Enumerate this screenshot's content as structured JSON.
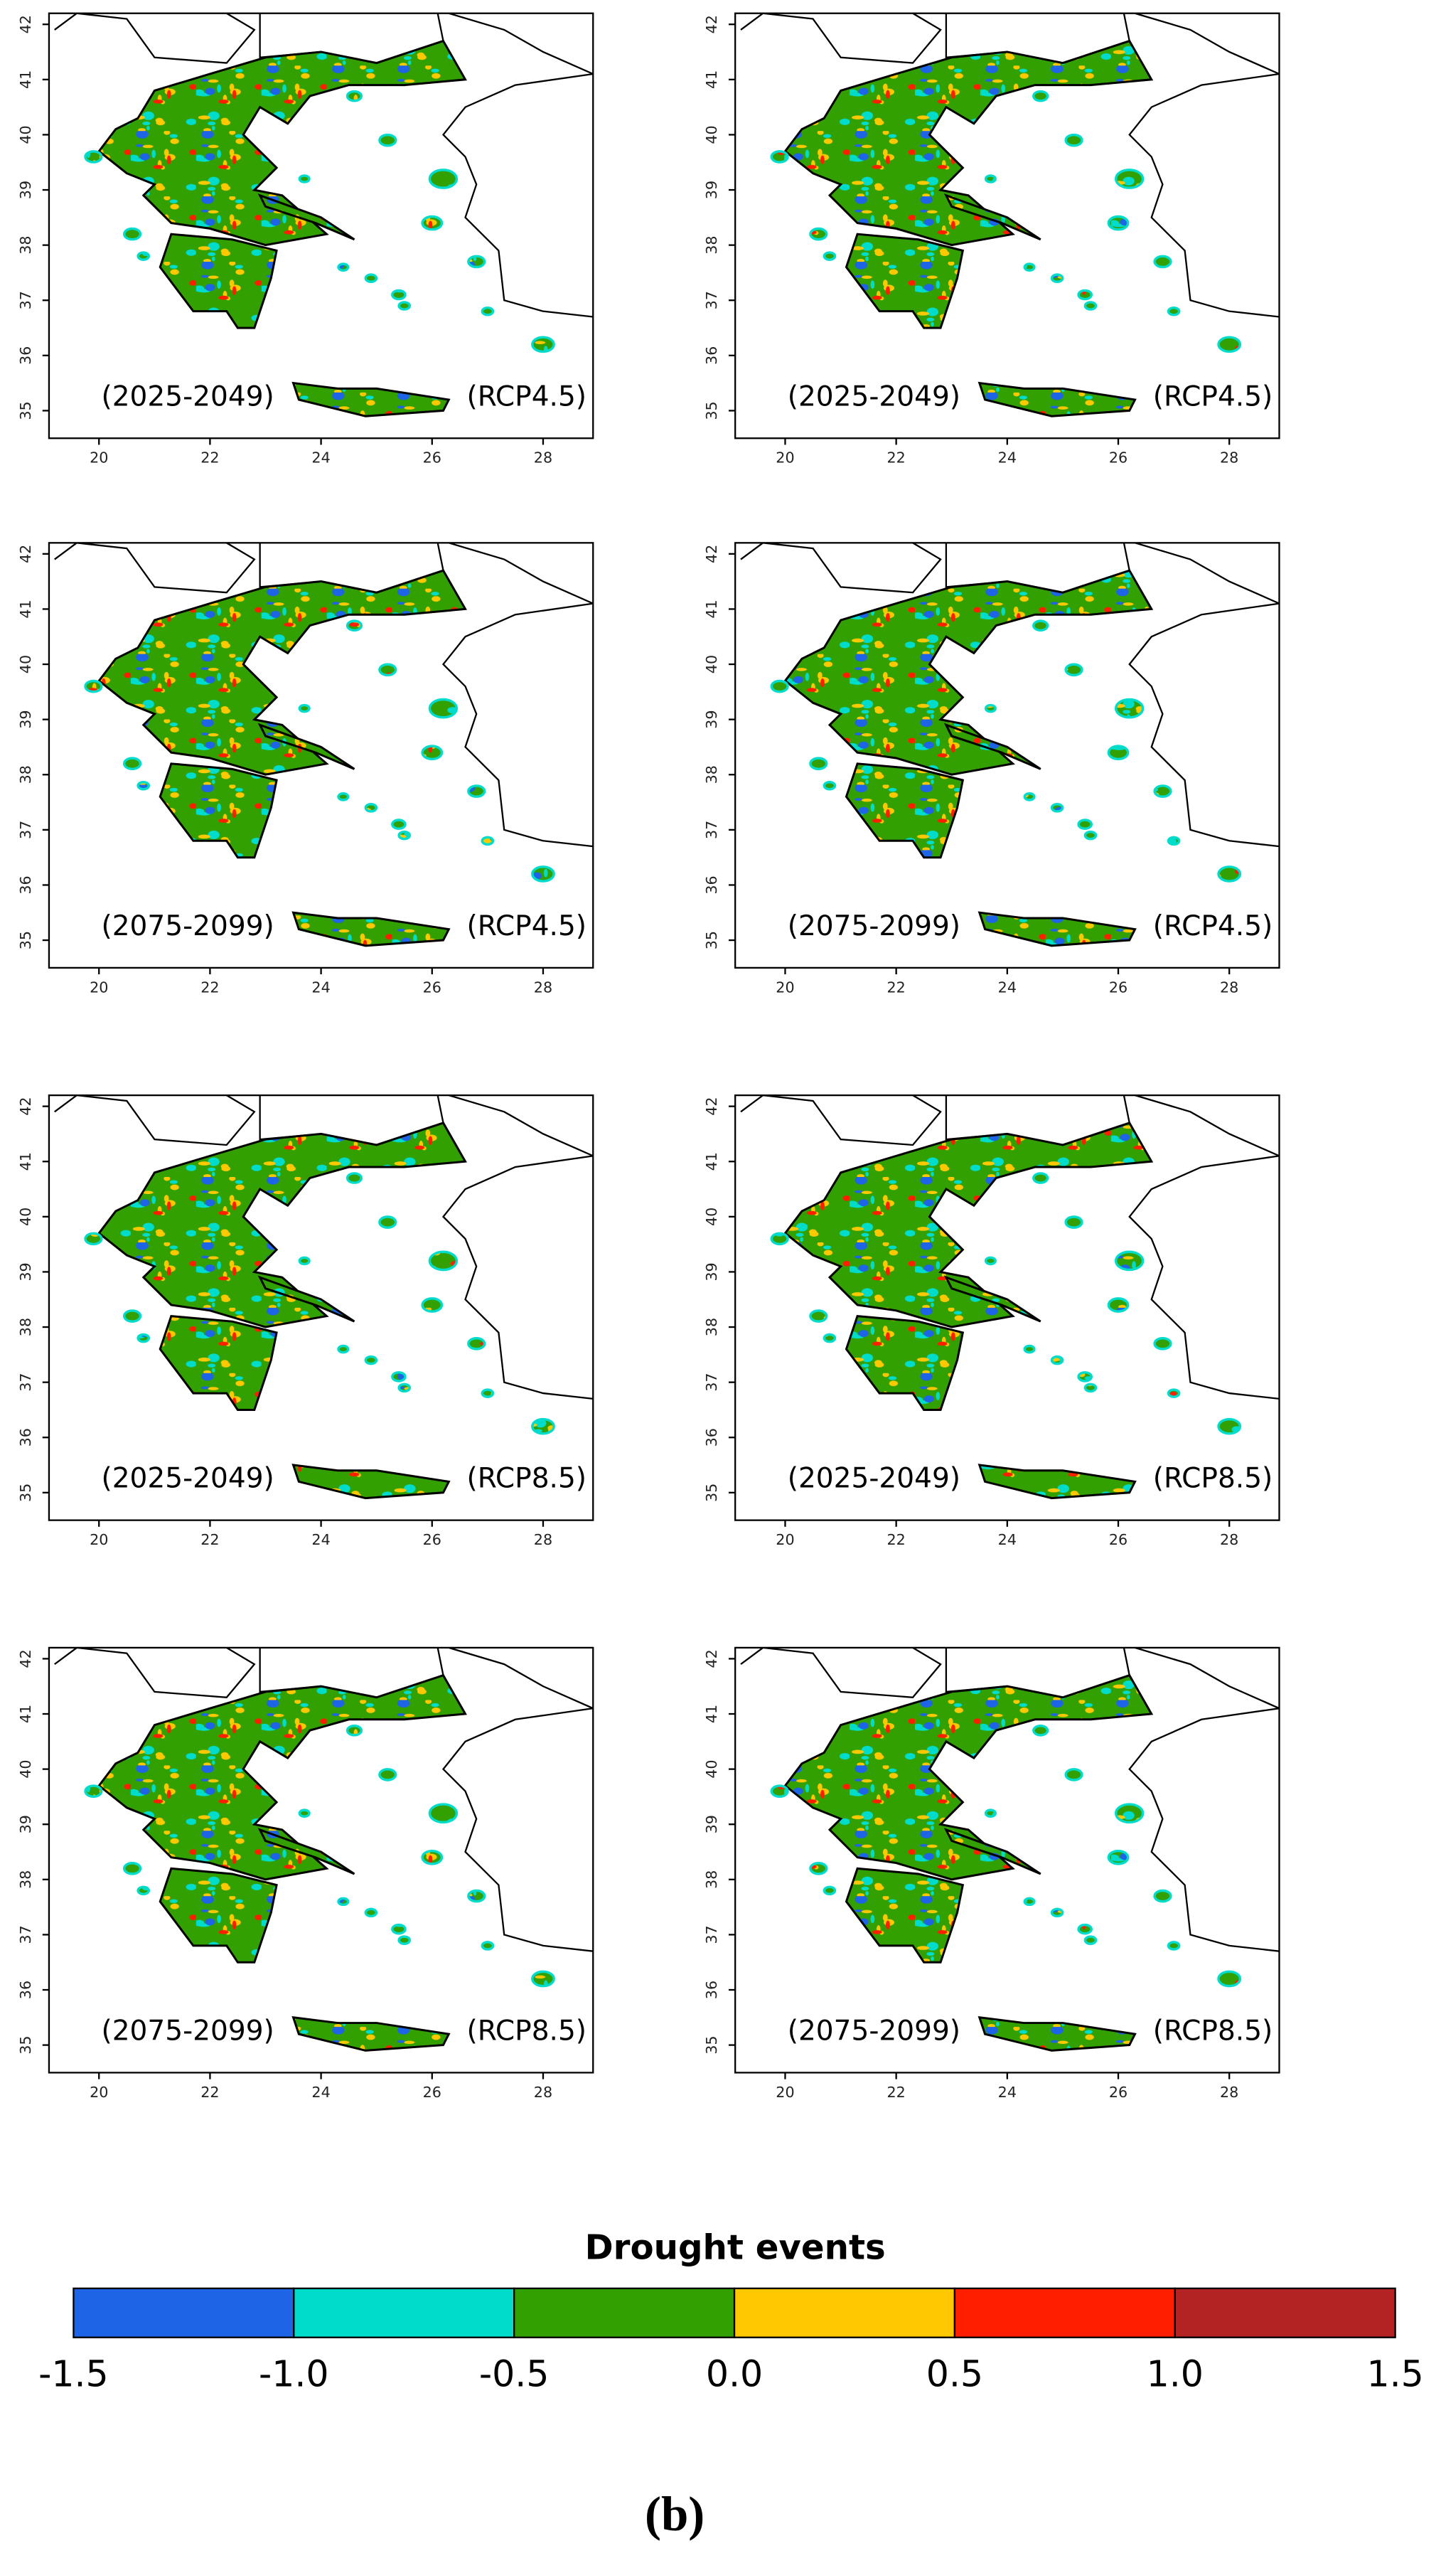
{
  "panels": [
    {
      "period": "(2025-2049)",
      "scenario": "(RCP4.5)"
    },
    {
      "period": "(2025-2049)",
      "scenario": "(RCP4.5)"
    },
    {
      "period": "(2075-2099)",
      "scenario": "(RCP4.5)"
    },
    {
      "period": "(2075-2099)",
      "scenario": "(RCP4.5)"
    },
    {
      "period": "(2025-2049)",
      "scenario": "(RCP8.5)"
    },
    {
      "period": "(2025-2049)",
      "scenario": "(RCP8.5)"
    },
    {
      "period": "(2075-2099)",
      "scenario": "(RCP8.5)"
    },
    {
      "period": "(2075-2099)",
      "scenario": "(RCP8.5)"
    }
  ],
  "map_axes": {
    "xlim": [
      19.1,
      28.9
    ],
    "ylim": [
      34.5,
      42.2
    ],
    "xticks": [
      20,
      22,
      24,
      26,
      28
    ],
    "yticks": [
      35,
      36,
      37,
      38,
      39,
      40,
      41,
      42
    ]
  },
  "legend": {
    "title": "Drought events",
    "ticks": [
      -1.5,
      {
        "value": -1,
        "label": "-1.0"
      },
      -0.5,
      {
        "value": 0,
        "label": "0.0"
      },
      0.5,
      {
        "value": 1,
        "label": "1.0"
      },
      1.5
    ],
    "colors": [
      "#1e64e6",
      "#00dccc",
      "#32a000",
      "#ffc800",
      "#ff1e00",
      "#b42323"
    ]
  },
  "caption": "(b)"
}
